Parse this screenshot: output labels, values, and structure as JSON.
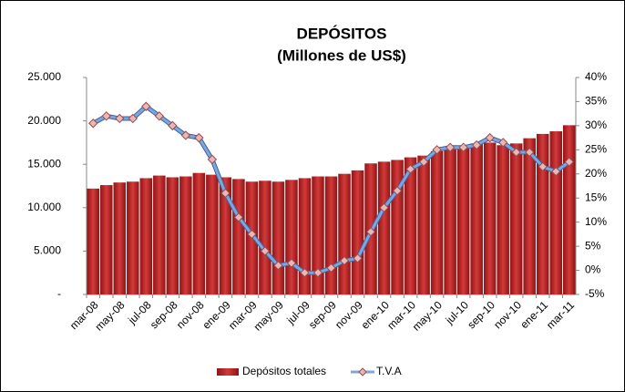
{
  "chart_data": {
    "type": "bar-line",
    "title": "DEPÓSITOS",
    "subtitle": "(Millones de US$)",
    "categories": [
      "mar-08",
      null,
      "may-08",
      null,
      "jul-08",
      null,
      "sep-08",
      null,
      "nov-08",
      null,
      "ene-09",
      null,
      "mar-09",
      null,
      "may-09",
      null,
      "jul-09",
      null,
      "sep-09",
      null,
      "nov-09",
      null,
      "ene-10",
      null,
      "mar-10",
      null,
      "may-10",
      null,
      "jul-10",
      null,
      "sep-10",
      null,
      "nov-10",
      null,
      "ene-11",
      null,
      "mar-11"
    ],
    "series": [
      {
        "name": "Depósitos totales",
        "type": "bar",
        "axis": "y",
        "color": "#c0282a",
        "values": [
          12200,
          12600,
          12900,
          13000,
          13400,
          13700,
          13500,
          13600,
          14000,
          13800,
          13500,
          13300,
          13000,
          13100,
          13000,
          13200,
          13400,
          13600,
          13600,
          13900,
          14300,
          15100,
          15300,
          15500,
          15800,
          16000,
          16500,
          16800,
          17000,
          17400,
          17500,
          17200,
          17400,
          18000,
          18500,
          18800,
          19500
        ]
      },
      {
        "name": "T.V.A",
        "type": "line",
        "axis": "y2",
        "color": "#7fa6d6",
        "values": [
          30.5,
          32,
          31.5,
          31.5,
          34,
          32,
          30,
          28,
          27.5,
          23,
          16,
          11,
          7.5,
          4,
          1,
          1.5,
          -0.5,
          -0.5,
          0.5,
          2,
          2.5,
          8,
          13,
          16.5,
          21,
          22.5,
          25,
          25.5,
          25.5,
          26,
          27.5,
          26.5,
          24.5,
          24.5,
          21.5,
          20.5,
          22.5
        ]
      }
    ],
    "ylim": [
      0,
      25000
    ],
    "yticks": [
      {
        "value": 0,
        "label": "-"
      },
      {
        "value": 5000,
        "label": "5.000"
      },
      {
        "value": 10000,
        "label": "10.000"
      },
      {
        "value": 15000,
        "label": "15.000"
      },
      {
        "value": 20000,
        "label": "20.000"
      },
      {
        "value": 25000,
        "label": "25.000"
      }
    ],
    "y2lim": [
      -5,
      40
    ],
    "y2ticks": [
      {
        "value": -5,
        "label": "-5%"
      },
      {
        "value": 0,
        "label": "0%"
      },
      {
        "value": 5,
        "label": "5%"
      },
      {
        "value": 10,
        "label": "10%"
      },
      {
        "value": 15,
        "label": "15%"
      },
      {
        "value": 20,
        "label": "20%"
      },
      {
        "value": 25,
        "label": "25%"
      },
      {
        "value": 30,
        "label": "30%"
      },
      {
        "value": 35,
        "label": "35%"
      },
      {
        "value": 40,
        "label": "40%"
      }
    ],
    "legend": "bottom"
  }
}
